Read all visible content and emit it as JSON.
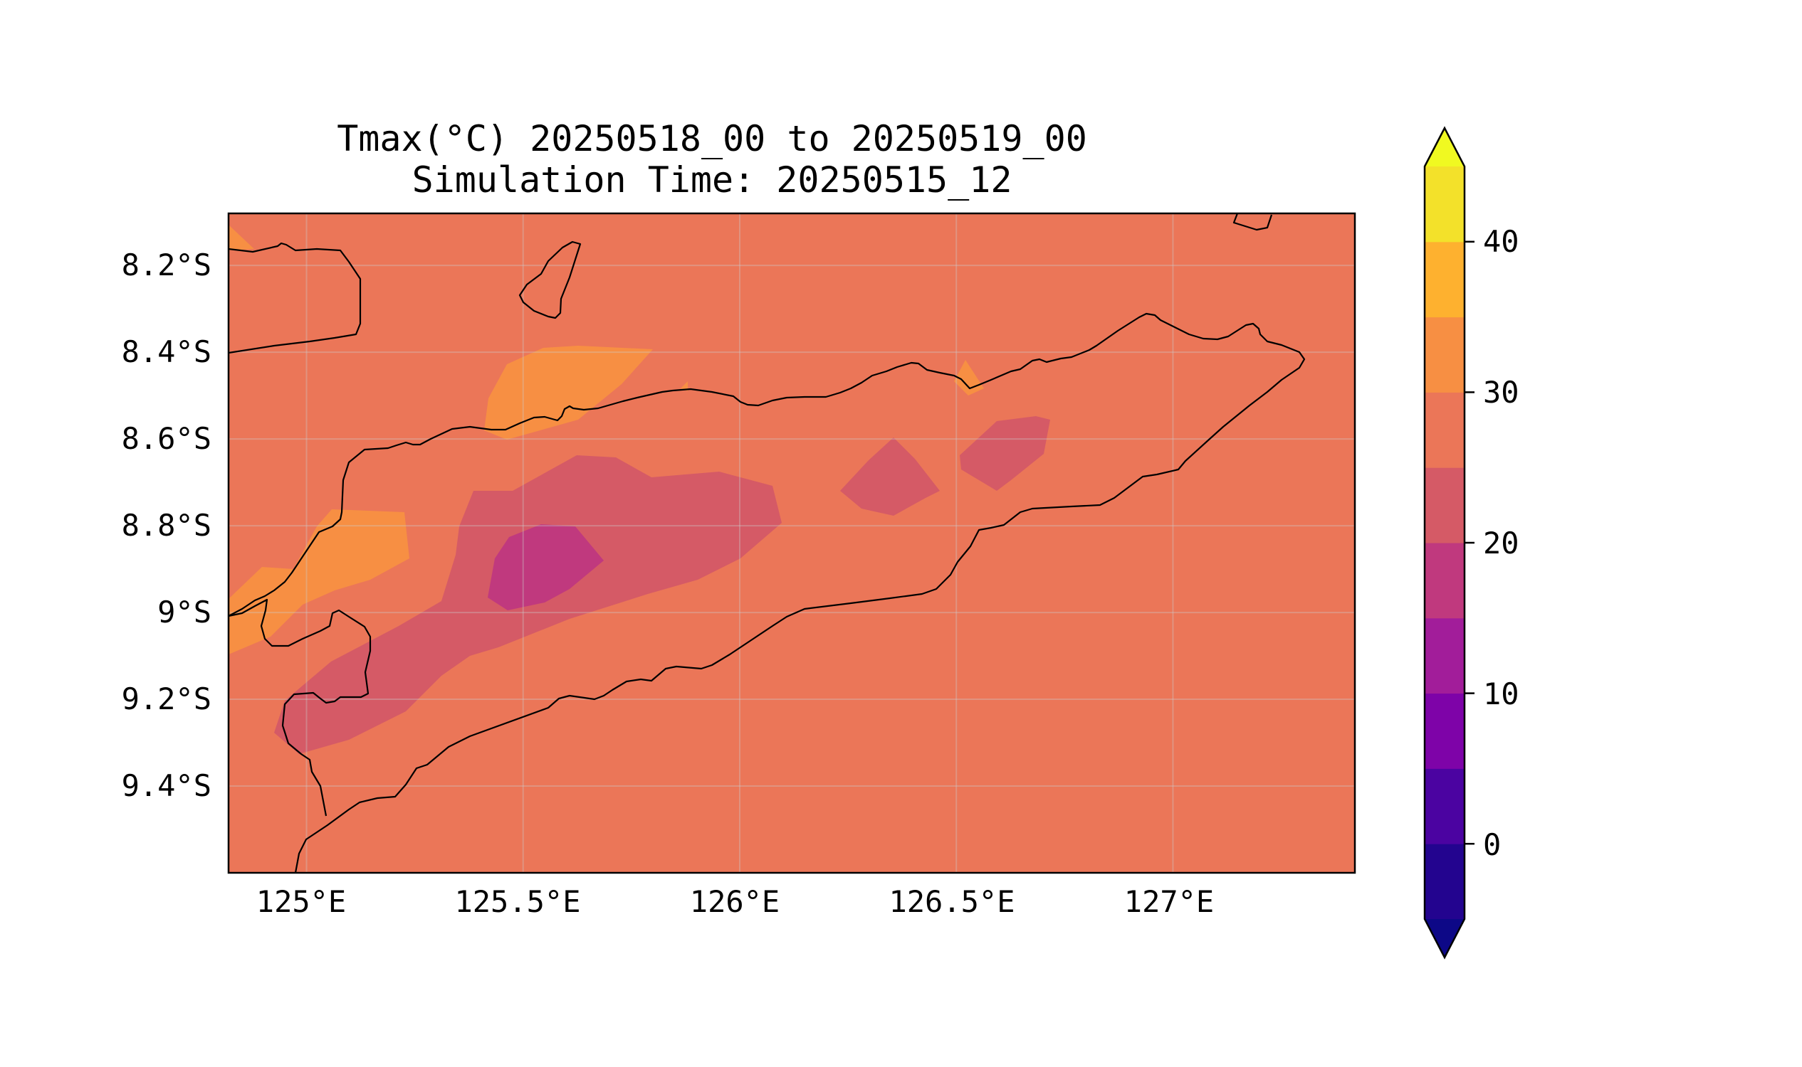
{
  "map": {
    "title_line1": "Tmax(°C) 20250518_00 to 20250519_00",
    "title_line2": "Simulation Time: 20250515_12",
    "lon_ticks": [
      "125°E",
      "125.5°E",
      "126°E",
      "126.5°E",
      "127°E"
    ],
    "lat_ticks": [
      "8.2°S",
      "8.4°S",
      "8.6°S",
      "8.8°S",
      "9°S",
      "9.2°S",
      "9.4°S"
    ],
    "extent": {
      "lon": [
        124.82,
        127.42
      ],
      "lat": [
        -9.6,
        -8.08
      ]
    },
    "grid": true,
    "background_level_color": "#EB7658"
  },
  "colorbar": {
    "tick_labels": [
      "0",
      "10",
      "20",
      "30",
      "40"
    ],
    "levels": [
      -5,
      0,
      5,
      10,
      15,
      20,
      25,
      30,
      35,
      40,
      45
    ],
    "colors": [
      "#23048F",
      "#4B03A1",
      "#7E03A8",
      "#A21D9A",
      "#C0397E",
      "#D55A66",
      "#EB7658",
      "#F78F43",
      "#FEB12F",
      "#F3E12A"
    ],
    "under_color": "#0D0887",
    "over_color": "#F0F921",
    "extend": "both"
  }
}
